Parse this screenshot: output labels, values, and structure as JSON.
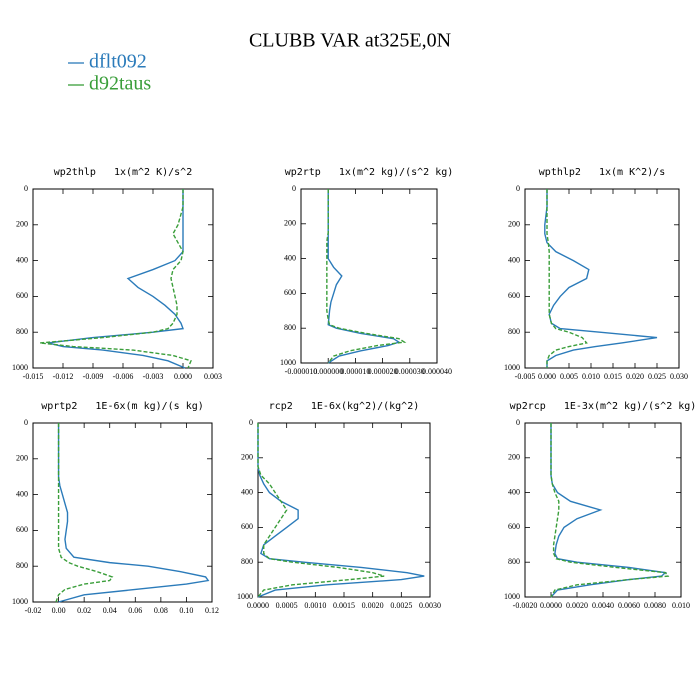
{
  "title": "CLUBB VAR at325E,0N",
  "legend_location": "upper left",
  "chart_data": [
    {
      "type": "line",
      "title": "wp2thlp   1x(m^2 K)/s^2",
      "y_inverted": true,
      "y": [
        0,
        100,
        200,
        250,
        300,
        350,
        400,
        450,
        500,
        550,
        600,
        650,
        700,
        750,
        780,
        800,
        830,
        860,
        880,
        900,
        930,
        960,
        1000
      ],
      "series": [
        {
          "name": "dflt092",
          "color": "#2b7bba",
          "linestyle": "solid",
          "values": [
            0,
            0,
            0,
            0,
            0,
            0,
            -0.0008,
            -0.003,
            -0.0055,
            -0.0045,
            -0.003,
            -0.0018,
            -0.0008,
            -0.0002,
            0,
            -0.003,
            -0.009,
            -0.0135,
            -0.012,
            -0.008,
            -0.004,
            -0.0015,
            0.0002
          ]
        },
        {
          "name": "d92taus",
          "color": "#3a9e3a",
          "linestyle": "dashed",
          "values": [
            0,
            0,
            -0.0005,
            -0.001,
            -0.0005,
            0,
            -0.0002,
            -0.001,
            -0.0012,
            -0.001,
            -0.0008,
            -0.0006,
            -0.0006,
            -0.001,
            -0.0015,
            -0.003,
            -0.008,
            -0.0143,
            -0.011,
            -0.005,
            -0.001,
            0.0008,
            0.0005
          ]
        }
      ],
      "xlim": [
        -0.015,
        0.003
      ],
      "xticks": [
        {
          "value": -0.015,
          "label": "-0.015"
        },
        {
          "value": -0.012,
          "label": "-0.012"
        },
        {
          "value": -0.009,
          "label": "-0.009"
        },
        {
          "value": -0.006,
          "label": "-0.006"
        },
        {
          "value": -0.003,
          "label": "-0.003"
        },
        {
          "value": 0,
          "label": "0.000"
        },
        {
          "value": 0.003,
          "label": "0.003"
        }
      ],
      "ylim": [
        0,
        1000
      ],
      "yticks": [
        0,
        200,
        400,
        600,
        800,
        1000
      ]
    },
    {
      "type": "line",
      "title": "wp2rtp   1x(m^2 kg)/(s^2 kg)",
      "y_inverted": true,
      "y": [
        0,
        100,
        200,
        250,
        300,
        350,
        400,
        450,
        500,
        550,
        600,
        650,
        700,
        750,
        780,
        800,
        830,
        860,
        880,
        900,
        930,
        960,
        1000
      ],
      "series": [
        {
          "name": "dflt092",
          "color": "#2b7bba",
          "linestyle": "solid",
          "values": [
            0,
            0,
            0,
            0,
            0,
            0,
            0,
            2e-06,
            5e-06,
            3e-06,
            2e-06,
            1e-06,
            5e-07,
            2e-07,
            0,
            3e-06,
            1.2e-05,
            2.4e-05,
            2.6e-05,
            2.2e-05,
            1.2e-05,
            4e-06,
            0
          ]
        },
        {
          "name": "d92taus",
          "color": "#3a9e3a",
          "linestyle": "dashed",
          "values": [
            0,
            0,
            0,
            0,
            -5e-07,
            -5e-07,
            -5e-07,
            -5e-07,
            -5e-07,
            -5e-07,
            -5e-07,
            -5e-07,
            -5e-07,
            0,
            5e-07,
            4e-06,
            1.4e-05,
            2.6e-05,
            2.8e-05,
            1.8e-05,
            8e-06,
            2e-06,
            0
          ]
        }
      ],
      "xlim": [
        -1e-05,
        4e-05
      ],
      "xticks": [
        {
          "value": -1e-05,
          "label": "-0.000010"
        },
        {
          "value": 0,
          "label": "0.000000"
        },
        {
          "value": 1e-05,
          "label": "0.000010"
        },
        {
          "value": 2e-05,
          "label": "0.000020"
        },
        {
          "value": 3e-05,
          "label": "0.000030"
        },
        {
          "value": 4e-05,
          "label": "0.000040"
        }
      ],
      "ylim": [
        0,
        1000
      ],
      "yticks": [
        0,
        200,
        400,
        600,
        800,
        1000
      ]
    },
    {
      "type": "line",
      "title": "wpthlp2   1x(m K^2)/s",
      "y_inverted": true,
      "y": [
        0,
        100,
        200,
        250,
        300,
        350,
        400,
        450,
        500,
        550,
        600,
        650,
        700,
        750,
        780,
        800,
        830,
        860,
        880,
        900,
        930,
        960,
        1000
      ],
      "series": [
        {
          "name": "dflt092",
          "color": "#2b7bba",
          "linestyle": "solid",
          "values": [
            0,
            0,
            -0.0005,
            -0.0005,
            0,
            0.002,
            0.006,
            0.0095,
            0.009,
            0.005,
            0.003,
            0.0015,
            0.0005,
            0.001,
            0.003,
            0.012,
            0.025,
            0.017,
            0.011,
            0.006,
            0.002,
            0,
            0
          ]
        },
        {
          "name": "d92taus",
          "color": "#3a9e3a",
          "linestyle": "dashed",
          "values": [
            0,
            0,
            0,
            0,
            0.0003,
            0.0005,
            0.0005,
            0.0005,
            0.0005,
            0.0005,
            0.0005,
            0.0005,
            0.0005,
            0.001,
            0.002,
            0.005,
            0.008,
            0.009,
            0.005,
            0.002,
            0.0005,
            0,
            0
          ]
        }
      ],
      "xlim": [
        -0.005,
        0.03
      ],
      "xticks": [
        {
          "value": -0.005,
          "label": "-0.005"
        },
        {
          "value": 0,
          "label": "0.000"
        },
        {
          "value": 0.005,
          "label": "0.005"
        },
        {
          "value": 0.01,
          "label": "0.010"
        },
        {
          "value": 0.015,
          "label": "0.015"
        },
        {
          "value": 0.02,
          "label": "0.020"
        },
        {
          "value": 0.025,
          "label": "0.025"
        },
        {
          "value": 0.03,
          "label": "0.030"
        }
      ],
      "ylim": [
        0,
        1000
      ],
      "yticks": [
        0,
        200,
        400,
        600,
        800,
        1000
      ]
    },
    {
      "type": "line",
      "title": "wprtp2   1E-6x(m kg)/(s kg)",
      "y_inverted": true,
      "y": [
        0,
        100,
        200,
        250,
        300,
        350,
        400,
        450,
        500,
        550,
        600,
        650,
        700,
        750,
        780,
        800,
        830,
        860,
        880,
        900,
        930,
        960,
        1000
      ],
      "series": [
        {
          "name": "dflt092",
          "color": "#2b7bba",
          "linestyle": "solid",
          "values": [
            0,
            0,
            0,
            0,
            0,
            0.001,
            0.003,
            0.005,
            0.007,
            0.007,
            0.006,
            0.005,
            0.006,
            0.012,
            0.04,
            0.07,
            0.095,
            0.115,
            0.117,
            0.1,
            0.06,
            0.02,
            0
          ]
        },
        {
          "name": "d92taus",
          "color": "#3a9e3a",
          "linestyle": "dashed",
          "values": [
            0,
            0,
            0,
            0,
            0,
            0,
            0,
            0,
            0,
            0,
            0,
            0,
            0,
            0.002,
            0.008,
            0.015,
            0.03,
            0.042,
            0.04,
            0.02,
            0.005,
            0,
            -0.002
          ]
        }
      ],
      "xlim": [
        -0.02,
        0.12
      ],
      "xticks": [
        {
          "value": -0.02,
          "label": "-0.02"
        },
        {
          "value": 0,
          "label": "0.00"
        },
        {
          "value": 0.02,
          "label": "0.02"
        },
        {
          "value": 0.04,
          "label": "0.04"
        },
        {
          "value": 0.06,
          "label": "0.06"
        },
        {
          "value": 0.08,
          "label": "0.08"
        },
        {
          "value": 0.1,
          "label": "0.10"
        },
        {
          "value": 0.12,
          "label": "0.12"
        }
      ],
      "ylim": [
        0,
        1000
      ],
      "yticks": [
        0,
        200,
        400,
        600,
        800,
        1000
      ]
    },
    {
      "type": "line",
      "title": "rcp2   1E-6x(kg^2)/(kg^2)",
      "y_inverted": true,
      "y": [
        0,
        100,
        200,
        250,
        300,
        350,
        400,
        450,
        500,
        550,
        600,
        650,
        700,
        750,
        780,
        800,
        830,
        860,
        880,
        900,
        930,
        960,
        1000
      ],
      "series": [
        {
          "name": "dflt092",
          "color": "#2b7bba",
          "linestyle": "solid",
          "values": [
            0,
            0,
            0,
            0,
            3e-05,
            0.0001,
            0.0002,
            0.0004,
            0.0007,
            0.0007,
            0.0005,
            0.0003,
            0.0001,
            5e-05,
            0.0002,
            0.0008,
            0.0018,
            0.0026,
            0.0029,
            0.0025,
            0.0012,
            0.0003,
            0
          ]
        },
        {
          "name": "d92taus",
          "color": "#3a9e3a",
          "linestyle": "dashed",
          "values": [
            0,
            0,
            0,
            0,
            5e-05,
            0.0002,
            0.0003,
            0.0004,
            0.0005,
            0.0004,
            0.0003,
            0.0002,
            0.0001,
            0.0001,
            0.0002,
            0.0006,
            0.0014,
            0.002,
            0.0022,
            0.0016,
            0.0006,
            0.0001,
            0
          ]
        }
      ],
      "xlim": [
        0,
        0.003
      ],
      "xticks": [
        {
          "value": 0,
          "label": "0.0000"
        },
        {
          "value": 0.0005,
          "label": "0.0005"
        },
        {
          "value": 0.001,
          "label": "0.0010"
        },
        {
          "value": 0.0015,
          "label": "0.0015"
        },
        {
          "value": 0.002,
          "label": "0.0020"
        },
        {
          "value": 0.0025,
          "label": "0.0025"
        },
        {
          "value": 0.003,
          "label": "0.0030"
        }
      ],
      "ylim": [
        0,
        1000
      ],
      "yticks": [
        0,
        200,
        400,
        600,
        800,
        1000
      ]
    },
    {
      "type": "line",
      "title": "wp2rcp   1E-3x(m^2 kg)/(s^2 kg)",
      "y_inverted": true,
      "y": [
        0,
        100,
        200,
        250,
        300,
        350,
        400,
        450,
        500,
        550,
        600,
        650,
        700,
        750,
        780,
        800,
        830,
        860,
        880,
        900,
        930,
        960,
        1000
      ],
      "series": [
        {
          "name": "dflt092",
          "color": "#2b7bba",
          "linestyle": "solid",
          "values": [
            0,
            0,
            0,
            0,
            0,
            0.0001,
            0.0005,
            0.0015,
            0.0038,
            0.002,
            0.001,
            0.0006,
            0.0004,
            0.0003,
            0.0005,
            0.002,
            0.006,
            0.0088,
            0.0085,
            0.006,
            0.003,
            0.0005,
            0
          ]
        },
        {
          "name": "d92taus",
          "color": "#3a9e3a",
          "linestyle": "dashed",
          "values": [
            0,
            0,
            0,
            0,
            0,
            0.0001,
            0.0003,
            0.0006,
            0.0006,
            0.0005,
            0.0004,
            0.0003,
            0.0002,
            0.0002,
            0.0004,
            0.0015,
            0.005,
            0.0088,
            0.009,
            0.006,
            0.002,
            0.0003,
            0
          ]
        }
      ],
      "xlim": [
        -0.002,
        0.01
      ],
      "xticks": [
        {
          "value": -0.002,
          "label": "-0.0020"
        },
        {
          "value": 0,
          "label": "0.0000"
        },
        {
          "value": 0.002,
          "label": "0.0020"
        },
        {
          "value": 0.004,
          "label": "0.0040"
        },
        {
          "value": 0.006,
          "label": "0.0060"
        },
        {
          "value": 0.008,
          "label": "0.0080"
        },
        {
          "value": 0.01,
          "label": "0.010"
        }
      ],
      "ylim": [
        0,
        1000
      ],
      "yticks": [
        0,
        200,
        400,
        600,
        800,
        1000
      ]
    }
  ]
}
